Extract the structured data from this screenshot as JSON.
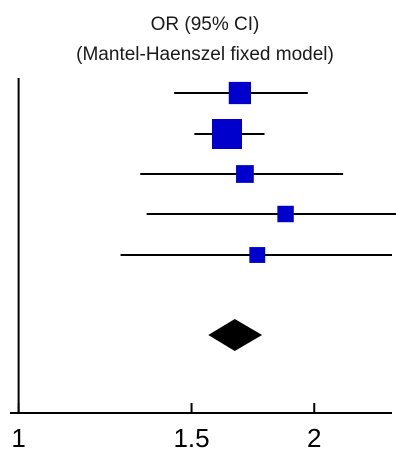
{
  "chart_data": {
    "type": "forest",
    "title": "OR (95% CI)",
    "subtitle": "(Mantel-Haenszel  fixed model)",
    "x_scale": "log",
    "xlim": [
      0.98,
      2.4
    ],
    "reference_line": 1,
    "x_ticks": [
      {
        "value": 1,
        "label": "1"
      },
      {
        "value": 1.5,
        "label": "1.5"
      },
      {
        "value": 2,
        "label": "2"
      }
    ],
    "studies": [
      {
        "or": 1.68,
        "lower": 1.44,
        "upper": 1.97,
        "weight": 0.55
      },
      {
        "or": 1.63,
        "lower": 1.51,
        "upper": 1.78,
        "weight": 1.0
      },
      {
        "or": 1.7,
        "lower": 1.33,
        "upper": 2.14,
        "weight": 0.35
      },
      {
        "or": 1.87,
        "lower": 1.35,
        "upper": 2.55,
        "weight": 0.3
      },
      {
        "or": 1.75,
        "lower": 1.27,
        "upper": 2.4,
        "weight": 0.28
      }
    ],
    "pooled": {
      "or": 1.66,
      "lower": 1.56,
      "upper": 1.77
    },
    "colors": {
      "marker": "#0000cc",
      "line": "#000000",
      "pooled": "#000000",
      "text": "#1a1a1a"
    }
  }
}
